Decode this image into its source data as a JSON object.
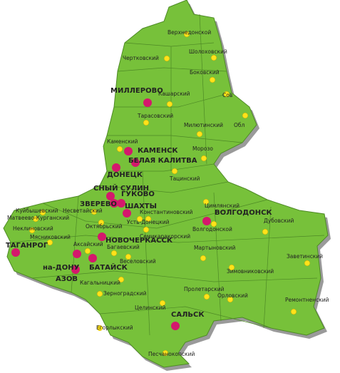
{
  "map": {
    "cities": [
      "МИЛЛЕРОВО",
      "КАМЕНСК",
      "БЕЛАЯ КАЛИТВА",
      "ДОНЕЦК",
      "СНЫЙ СУЛИН",
      "ГУКОВО",
      "ЗВЕРЕВО",
      "ШАХТЫ",
      "ВОЛГОДОНСК",
      "НОВОЧЕРКАССК",
      "ТАГАНРОГ",
      "на-ДОНУ",
      "БАТАЙСК",
      "АЗОВ",
      "САЛЬСК"
    ],
    "districts": [
      "Верхнедонской",
      "Чертковский",
      "Шолоховский",
      "Боковский",
      "Кашарский",
      "Сов",
      "Тарасовский",
      "Милютинский",
      "Обл",
      "Каменский",
      "Морозо",
      "Тацинский",
      "Цимлянский",
      "Константиновский",
      "Волгодонской",
      "Дубовский",
      "Несветайский",
      "Куйбышевский",
      "Матвеево-Курганский",
      "Неклиновский",
      "Октябрьский",
      "Усть-Донецкий",
      "Семикаракорский",
      "Мясниковский",
      "Аксайский",
      "Багаевский",
      "Мартыновский",
      "Заветинский",
      "Веселовский",
      "Зимовниковский",
      "Кагальницкий",
      "Зерноградский",
      "Пролетарский",
      "Орловский",
      "Ремонтненский",
      "Целинский",
      "Егорлыкский",
      "Песчанокопский"
    ]
  }
}
